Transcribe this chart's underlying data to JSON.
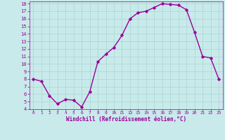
{
  "x": [
    0,
    1,
    2,
    3,
    4,
    5,
    6,
    7,
    8,
    9,
    10,
    11,
    12,
    13,
    14,
    15,
    16,
    17,
    18,
    19,
    20,
    21,
    22,
    23
  ],
  "y": [
    8.0,
    7.7,
    5.8,
    4.7,
    5.3,
    5.2,
    4.3,
    6.3,
    10.3,
    11.3,
    12.2,
    13.8,
    16.0,
    16.8,
    17.0,
    17.5,
    18.0,
    17.9,
    17.8,
    17.2,
    14.2,
    11.0,
    10.8,
    8.0
  ],
  "line_color": "#990099",
  "marker": "D",
  "marker_size": 1.8,
  "bg_color": "#c8eaea",
  "grid_color": "#aad4d4",
  "xlabel": "Windchill (Refroidissement éolien,°C)",
  "xlabel_color": "#990099",
  "tick_color": "#990099",
  "ylim": [
    4,
    18
  ],
  "xlim": [
    -0.5,
    23.5
  ],
  "yticks": [
    4,
    5,
    6,
    7,
    8,
    9,
    10,
    11,
    12,
    13,
    14,
    15,
    16,
    17,
    18
  ],
  "xticks": [
    0,
    1,
    2,
    3,
    4,
    5,
    6,
    7,
    8,
    9,
    10,
    11,
    12,
    13,
    14,
    15,
    16,
    17,
    18,
    19,
    20,
    21,
    22,
    23
  ],
  "linewidth": 1.0,
  "figsize": [
    3.2,
    2.0
  ],
  "dpi": 100
}
